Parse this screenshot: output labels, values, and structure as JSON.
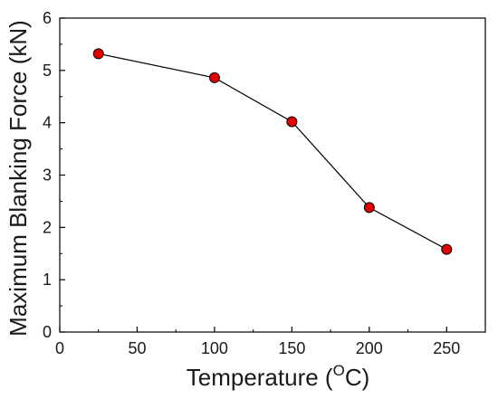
{
  "chart_data": {
    "type": "line",
    "title": "",
    "xlabel": "Temperature (",
    "xlabel_superscript": "O",
    "xlabel_suffix": "C)",
    "ylabel": "Maximum Blanking Force (kN)",
    "xlim": [
      0,
      275
    ],
    "ylim": [
      0,
      6
    ],
    "xticks": [
      "0",
      "50",
      "100",
      "150",
      "200",
      "250"
    ],
    "yticks": [
      "0",
      "1",
      "2",
      "3",
      "4",
      "5",
      "6"
    ],
    "grid": false,
    "legend": "none",
    "series": [
      {
        "x": [
          25,
          100,
          150,
          200,
          250
        ],
        "y": [
          5.32,
          4.86,
          4.02,
          2.38,
          1.58
        ],
        "marker_color": "#e00000",
        "line_color": "#000000"
      }
    ]
  }
}
